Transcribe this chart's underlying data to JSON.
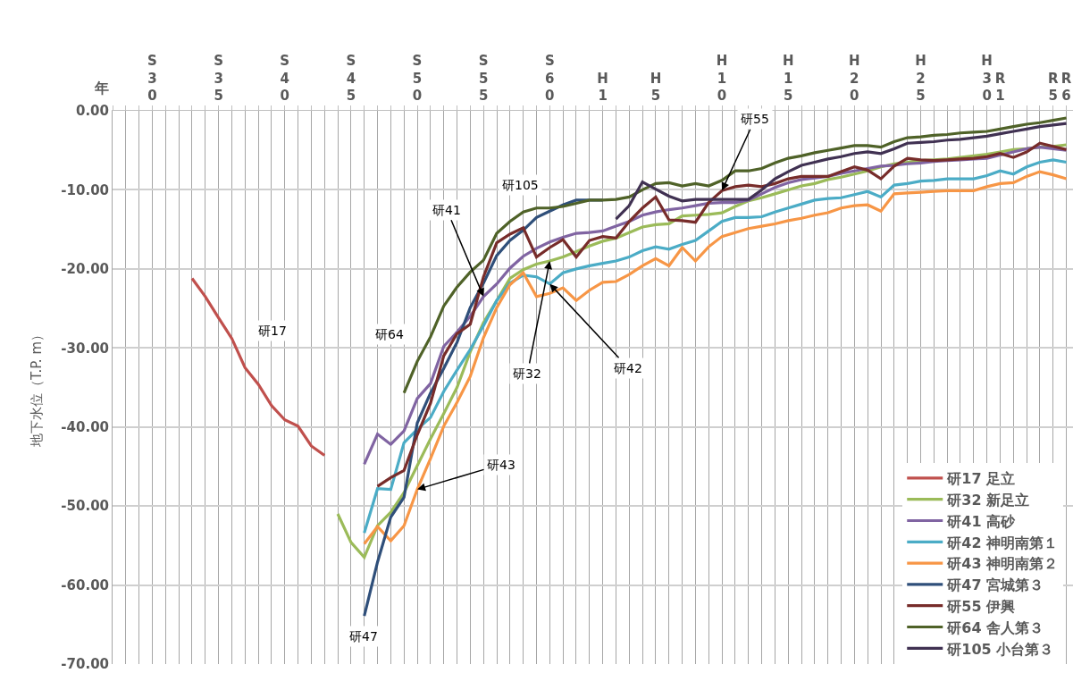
{
  "chart_data": {
    "type": "line",
    "xlabel": "年",
    "ylabel": "地下水位（T.P. m）",
    "categories": [
      null,
      null,
      null,
      "S30",
      null,
      null,
      null,
      null,
      "S35",
      null,
      null,
      null,
      null,
      "S40",
      null,
      null,
      null,
      null,
      "S45",
      null,
      null,
      null,
      null,
      "S50",
      null,
      null,
      null,
      null,
      "S55",
      null,
      null,
      null,
      null,
      "S60",
      null,
      null,
      null,
      "H1",
      null,
      null,
      null,
      "H5",
      null,
      null,
      null,
      null,
      "H10",
      null,
      null,
      null,
      null,
      "H15",
      null,
      null,
      null,
      null,
      "H20",
      null,
      null,
      null,
      null,
      "H25",
      null,
      null,
      null,
      null,
      "H30",
      "R1",
      null,
      null,
      null,
      "R5",
      "R6"
    ],
    "ylim": [
      -70,
      0
    ],
    "yticks": [
      {
        "value": 0,
        "label": "0.00"
      },
      {
        "value": -10,
        "label": "-10.00"
      },
      {
        "value": -20,
        "label": "-20.00"
      },
      {
        "value": -30,
        "label": "-30.00"
      },
      {
        "value": -40,
        "label": "-40.00"
      },
      {
        "value": -50,
        "label": "-50.00"
      },
      {
        "value": -60,
        "label": "-60.00"
      },
      {
        "value": -70,
        "label": "-70.00"
      }
    ],
    "grid": true,
    "legend": "bottom right",
    "marker": "none",
    "line_style": "solid",
    "series": [
      {
        "name": "研17 足立",
        "color": "#c0504d",
        "values": [
          null,
          null,
          null,
          null,
          null,
          null,
          -21.2,
          -23.5,
          -26.2,
          -28.8,
          -32.5,
          -34.6,
          -37.3,
          -39.1,
          -39.9,
          -42.4,
          -43.6,
          null,
          null,
          null,
          null,
          null,
          null,
          null,
          null,
          null,
          null,
          null,
          null,
          null,
          null,
          null,
          null,
          null,
          null,
          null,
          null,
          null,
          null,
          null,
          null,
          null,
          null,
          null,
          null,
          null,
          null,
          null,
          null,
          null,
          null,
          null,
          null,
          null,
          null,
          null,
          null,
          null,
          null,
          null,
          null,
          null,
          null,
          null,
          null,
          null,
          null,
          null,
          null,
          null,
          null,
          null,
          null
        ]
      },
      {
        "name": "研32 新足立",
        "color": "#9bbb59",
        "values": [
          null,
          null,
          null,
          null,
          null,
          null,
          null,
          null,
          null,
          null,
          null,
          null,
          null,
          null,
          null,
          null,
          null,
          -51.0,
          -54.6,
          -56.5,
          -52.5,
          -50.8,
          -48.3,
          -44.9,
          -41.5,
          -38.3,
          -35.0,
          -30.5,
          -26.8,
          -24.0,
          -21.2,
          -20.1,
          -19.4,
          -19.0,
          -18.5,
          -17.8,
          -17.1,
          -16.5,
          -16.1,
          -15.4,
          -14.7,
          -14.4,
          -14.3,
          -13.3,
          -13.2,
          -13.1,
          -12.9,
          -12.1,
          -11.4,
          -11.0,
          -10.5,
          -10.0,
          -9.5,
          -9.2,
          -8.7,
          -8.4,
          -8.0,
          -7.6,
          -7.1,
          -6.7,
          -6.5,
          -6.3,
          -6.2,
          -6.1,
          -5.9,
          -5.7,
          -5.5,
          -5.2,
          -4.9,
          -4.8,
          -4.6,
          -4.5,
          -4.3
        ]
      },
      {
        "name": "研41 高砂",
        "color": "#8064a2",
        "values": [
          null,
          null,
          null,
          null,
          null,
          null,
          null,
          null,
          null,
          null,
          null,
          null,
          null,
          null,
          null,
          null,
          null,
          null,
          null,
          -44.7,
          -40.9,
          -42.2,
          -40.5,
          -36.4,
          -34.5,
          -29.8,
          -28.0,
          -26.0,
          -23.5,
          -21.9,
          -19.9,
          -18.4,
          -17.4,
          -16.6,
          -16.0,
          -15.5,
          -15.4,
          -15.2,
          -14.6,
          -14.0,
          -13.2,
          -12.8,
          -12.5,
          -12.3,
          -12.0,
          -11.7,
          -11.6,
          -11.6,
          -11.3,
          -10.5,
          -9.7,
          -9.1,
          -8.7,
          -8.5,
          -8.3,
          -7.9,
          -7.6,
          -7.3,
          -7.0,
          -6.9,
          -6.7,
          -6.6,
          -6.4,
          -6.3,
          -6.2,
          -6.1,
          -6.0,
          -5.6,
          -5.2,
          -4.8,
          -4.6,
          -4.8,
          -5.0
        ]
      },
      {
        "name": "研42 神明南第１",
        "color": "#4bacc6",
        "values": [
          null,
          null,
          null,
          null,
          null,
          null,
          null,
          null,
          null,
          null,
          null,
          null,
          null,
          null,
          null,
          null,
          null,
          null,
          null,
          -53.4,
          -47.8,
          -47.9,
          -42.0,
          -40.3,
          -38.8,
          -35.5,
          -32.8,
          -30.2,
          -27.2,
          -24.0,
          -21.8,
          -20.8,
          -21.0,
          -21.9,
          -20.5,
          -20.0,
          -19.6,
          -19.3,
          -19.0,
          -18.5,
          -17.7,
          -17.2,
          -17.5,
          -16.9,
          -16.4,
          -15.2,
          -14.0,
          -13.5,
          -13.5,
          -13.4,
          -12.8,
          -12.3,
          -11.8,
          -11.3,
          -11.1,
          -11.0,
          -10.6,
          -10.2,
          -10.9,
          -9.4,
          -9.2,
          -8.9,
          -8.8,
          -8.6,
          -8.6,
          -8.6,
          -8.2,
          -7.6,
          -8.0,
          -7.1,
          -6.5,
          -6.2,
          -6.5
        ]
      },
      {
        "name": "研43 神明南第２",
        "color": "#f79646",
        "values": [
          null,
          null,
          null,
          null,
          null,
          null,
          null,
          null,
          null,
          null,
          null,
          null,
          null,
          null,
          null,
          null,
          null,
          null,
          null,
          -54.8,
          -52.6,
          -54.4,
          -52.5,
          -47.9,
          -44.0,
          -39.9,
          -36.9,
          -33.6,
          -28.7,
          -24.9,
          -22.0,
          -20.5,
          -23.5,
          -23.1,
          -22.4,
          -24.0,
          -22.7,
          -21.7,
          -21.6,
          -20.7,
          -19.6,
          -18.7,
          -19.6,
          -17.3,
          -19.0,
          -17.2,
          -15.9,
          -15.4,
          -14.9,
          -14.6,
          -14.3,
          -13.9,
          -13.6,
          -13.2,
          -12.9,
          -12.3,
          -12.0,
          -11.9,
          -12.7,
          -10.5,
          -10.4,
          -10.3,
          -10.2,
          -10.1,
          -10.1,
          -10.1,
          -9.6,
          -9.2,
          -9.1,
          -8.3,
          -7.7,
          -8.1,
          -8.6
        ]
      },
      {
        "name": "研47 宮城第３",
        "color": "#2f4f7a",
        "values": [
          null,
          null,
          null,
          null,
          null,
          null,
          null,
          null,
          null,
          null,
          null,
          null,
          null,
          null,
          null,
          null,
          null,
          null,
          null,
          -63.9,
          -57.1,
          -51.4,
          -48.9,
          -39.5,
          -35.7,
          -32.6,
          -29.3,
          -24.9,
          -21.8,
          -18.3,
          -16.4,
          -15.1,
          -13.5,
          -12.7,
          -11.9,
          -11.3,
          -11.3,
          -11.3,
          null,
          null,
          null,
          null,
          null,
          null,
          null,
          null,
          null,
          null,
          null,
          null,
          null,
          null,
          null,
          null,
          null,
          null,
          null,
          null,
          null,
          null,
          null,
          null,
          null,
          null,
          null,
          null,
          null,
          null,
          null,
          null,
          null,
          null,
          null
        ]
      },
      {
        "name": "研55 伊興",
        "color": "#772c2a",
        "values": [
          null,
          null,
          null,
          null,
          null,
          null,
          null,
          null,
          null,
          null,
          null,
          null,
          null,
          null,
          null,
          null,
          null,
          null,
          null,
          null,
          -47.5,
          -46.4,
          -45.5,
          -41.0,
          -37.0,
          -31.0,
          -28.2,
          -27.0,
          -21.0,
          -16.7,
          -15.6,
          -14.8,
          -18.5,
          -17.3,
          -16.3,
          -18.5,
          -16.4,
          -15.9,
          -16.1,
          -14.0,
          -12.3,
          -10.9,
          -13.8,
          -13.9,
          -14.1,
          -11.6,
          -10.1,
          -9.6,
          -9.4,
          -9.6,
          -9.2,
          -8.6,
          -8.3,
          -8.3,
          -8.3,
          -7.7,
          -7.1,
          -7.5,
          -8.6,
          -7.0,
          -6.0,
          -6.2,
          -6.3,
          -6.2,
          -6.1,
          -6.0,
          -5.8,
          -5.4,
          -5.9,
          -5.2,
          -4.1,
          -4.5,
          -4.9
        ]
      },
      {
        "name": "研64 舎人第３",
        "color": "#4f6228",
        "values": [
          null,
          null,
          null,
          null,
          null,
          null,
          null,
          null,
          null,
          null,
          null,
          null,
          null,
          null,
          null,
          null,
          null,
          null,
          null,
          null,
          null,
          null,
          -35.7,
          -31.7,
          -28.6,
          -24.7,
          -22.3,
          -20.4,
          -18.9,
          -15.5,
          -14.0,
          -12.8,
          -12.3,
          -12.3,
          -12.1,
          -11.7,
          -11.3,
          -11.3,
          -11.2,
          -10.9,
          -10.0,
          -9.2,
          -9.1,
          -9.5,
          -9.2,
          -9.5,
          -8.8,
          -7.6,
          -7.6,
          -7.3,
          -6.6,
          -6.0,
          -5.7,
          -5.3,
          -5.0,
          -4.7,
          -4.4,
          -4.4,
          -4.6,
          -3.9,
          -3.4,
          -3.3,
          -3.1,
          -3.0,
          -2.8,
          -2.7,
          -2.6,
          -2.3,
          -2.0,
          -1.7,
          -1.5,
          -1.2,
          -0.9
        ]
      },
      {
        "name": "研105 小台第３",
        "color": "#403152",
        "values": [
          null,
          null,
          null,
          null,
          null,
          null,
          null,
          null,
          null,
          null,
          null,
          null,
          null,
          null,
          null,
          null,
          null,
          null,
          null,
          null,
          null,
          null,
          null,
          null,
          null,
          null,
          null,
          null,
          null,
          null,
          null,
          null,
          null,
          null,
          null,
          null,
          null,
          null,
          -13.7,
          -12.0,
          -9.0,
          -9.9,
          -10.8,
          -11.4,
          -11.2,
          -11.2,
          -11.2,
          -11.2,
          -11.2,
          -10.0,
          -8.6,
          -7.7,
          -6.9,
          -6.5,
          -6.1,
          -5.8,
          -5.4,
          -5.2,
          -5.4,
          -4.8,
          -4.1,
          -4.0,
          -3.9,
          -3.7,
          -3.6,
          -3.4,
          -3.2,
          -2.9,
          -2.6,
          -2.3,
          -2.0,
          -1.8,
          -1.6
        ]
      }
    ],
    "annotations": [
      "研17",
      "研64",
      "研47",
      "研105",
      {
        "text": "研41",
        "x": "S55",
        "y": -23.5
      },
      {
        "text": "研32",
        "x": "S60",
        "y": -19.0
      },
      {
        "text": "研42",
        "x": "S60",
        "y": -21.9
      },
      {
        "text": "研43",
        "x": "S50",
        "y": -47.9
      },
      {
        "text": "研55",
        "x": "H10",
        "y": -10.1
      }
    ]
  }
}
